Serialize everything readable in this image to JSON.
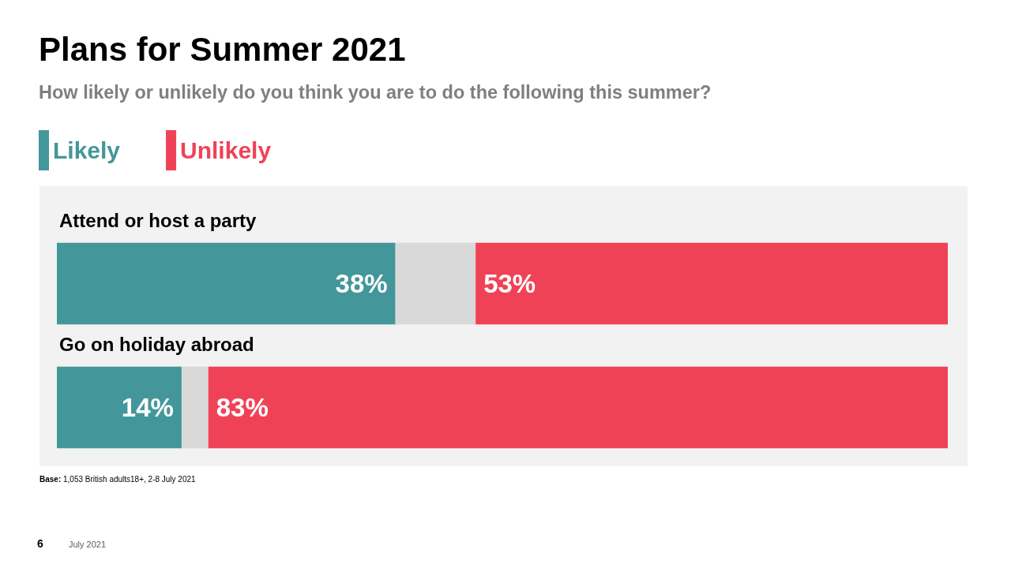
{
  "chart_data": {
    "type": "bar",
    "title": "Plans for Summer 2021",
    "subtitle": "How likely or unlikely do you think you are to do the following this summer?",
    "categories": [
      "Attend or host a party",
      "Go on holiday abroad"
    ],
    "series": [
      {
        "name": "Likely",
        "color": "#43979a",
        "values": [
          38,
          14
        ],
        "value_labels": [
          "38%",
          "14%"
        ]
      },
      {
        "color": "#d9d9d9",
        "values": [
          9,
          3
        ]
      },
      {
        "name": "Unlikely",
        "color": "#f04256",
        "values": [
          53,
          83
        ],
        "value_labels": [
          "53%",
          "83%"
        ]
      }
    ],
    "stacked": true,
    "orientation": "horizontal",
    "xlim": [
      0,
      100
    ],
    "tick_labels": "y",
    "grid": false,
    "legend": "top left",
    "annotations": [
      "Base: 1,053 British adults18+, 2-8 July 2021",
      "6",
      "July 2021"
    ]
  }
}
